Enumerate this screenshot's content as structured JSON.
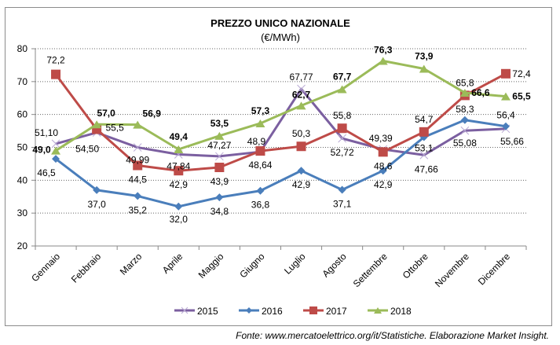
{
  "chart_data": {
    "type": "line",
    "title": "PREZZO UNICO NAZIONALE",
    "subtitle": "(€/MWh)",
    "xlabel": "",
    "ylabel": "",
    "ylim": [
      20,
      80
    ],
    "yticks": [
      20,
      30,
      40,
      50,
      60,
      70,
      80
    ],
    "grid": true,
    "legend": "bottom",
    "categories": [
      "Gennaio",
      "Febbraio",
      "Marzo",
      "Aprile",
      "Maggio",
      "Giugno",
      "Luglio",
      "Agosto",
      "Settembre",
      "Ottobre",
      "Novembre",
      "Dicembre"
    ],
    "series": [
      {
        "name": "2015",
        "color": "#7b5fa0",
        "marker": "x",
        "values": [
          51.1,
          54.5,
          49.99,
          47.84,
          47.27,
          48.64,
          67.77,
          52.72,
          49.39,
          47.66,
          55.08,
          55.66
        ],
        "labels": [
          "51,10",
          "54,50",
          "49,99",
          "47,84",
          "47,27",
          "48,64",
          "67,77",
          "52,72",
          "49,39",
          "47,66",
          "55,08",
          "55,66"
        ]
      },
      {
        "name": "2016",
        "color": "#4a7ebb",
        "marker": "diamond",
        "values": [
          46.5,
          37.0,
          35.2,
          32.0,
          34.8,
          36.8,
          42.9,
          37.1,
          42.9,
          53.1,
          58.3,
          56.4
        ],
        "labels": [
          "46,5",
          "37,0",
          "35,2",
          "32,0",
          "34,8",
          "36,8",
          "42,9",
          "37,1",
          "42,9",
          "53,1",
          "58,3",
          "56,4"
        ]
      },
      {
        "name": "2017",
        "color": "#be4b48",
        "marker": "square",
        "values": [
          72.2,
          55.5,
          44.5,
          42.9,
          43.9,
          48.9,
          50.3,
          55.8,
          48.6,
          54.7,
          65.8,
          72.4
        ],
        "labels": [
          "72,2",
          "55,5",
          "44,5",
          "42,9",
          "43,9",
          "48,9",
          "50,3",
          "55,8",
          "48,6",
          "54,7",
          "65,8",
          "72,4"
        ]
      },
      {
        "name": "2018",
        "color": "#9bbb59",
        "marker": "triangle",
        "values": [
          49.0,
          57.0,
          56.9,
          49.4,
          53.5,
          57.3,
          62.7,
          67.7,
          76.3,
          73.9,
          66.6,
          65.5
        ],
        "labels": [
          "49,0",
          "57,0",
          "56,9",
          "49,4",
          "53,5",
          "57,3",
          "62,7",
          "67,7",
          "76,3",
          "73,9",
          "66,6",
          "65,5"
        ]
      }
    ]
  },
  "source": "Fonte: www.mercatoelettrico.org/it/Statistiche. Elaborazione Market Insight."
}
